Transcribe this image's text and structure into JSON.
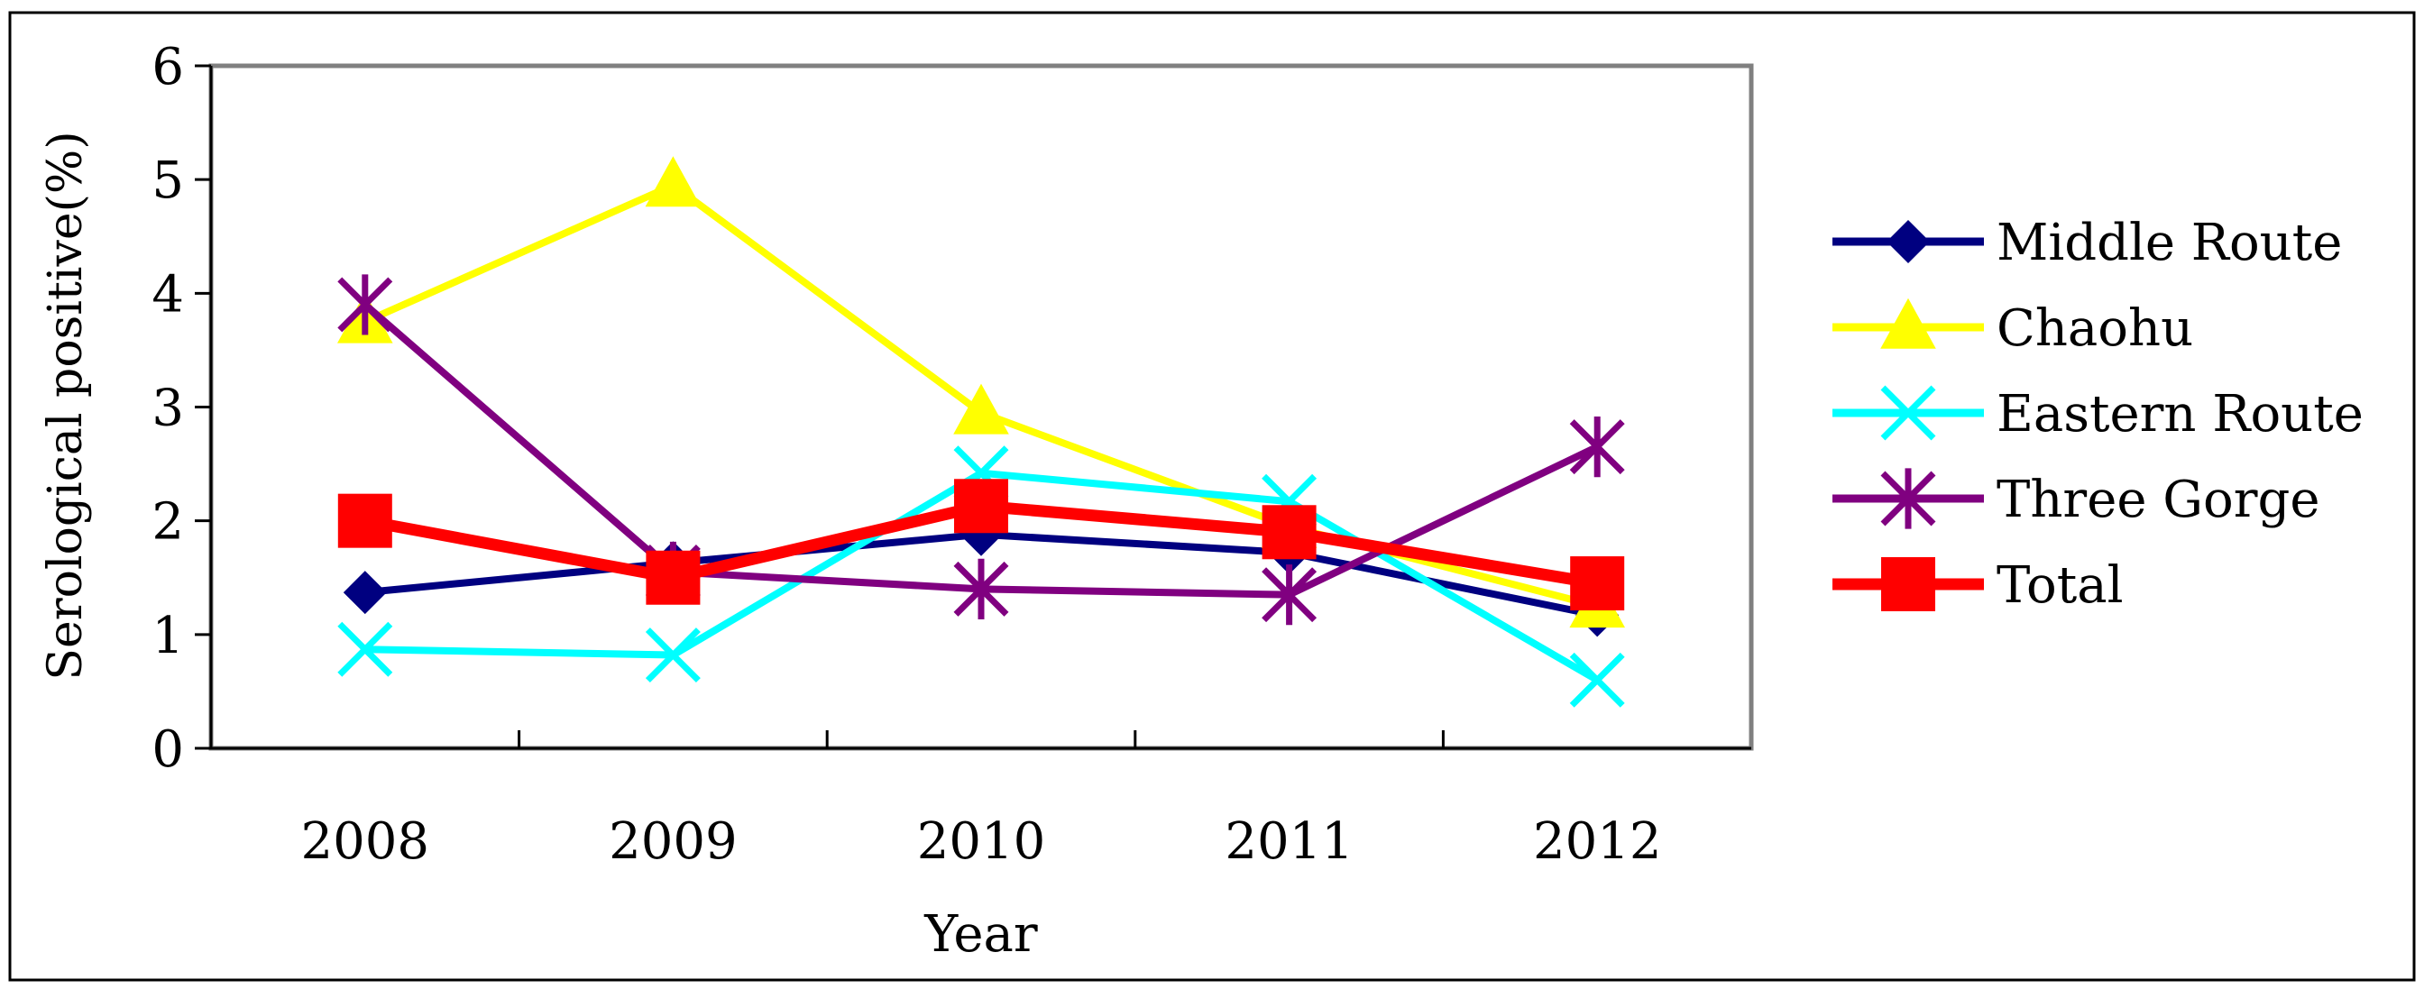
{
  "chart_data": {
    "type": "line",
    "title": "",
    "xlabel": "Year",
    "ylabel": "Serological positive(%)",
    "categories": [
      "2008",
      "2009",
      "2010",
      "2011",
      "2012"
    ],
    "ylim": [
      0,
      6
    ],
    "yticks": [
      "0",
      "1",
      "2",
      "3",
      "4",
      "5",
      "6"
    ],
    "grid": false,
    "legend_position": "right",
    "series": [
      {
        "name": "Middle Route",
        "color": "#000080",
        "marker": "diamond",
        "values": [
          1.37,
          1.63,
          1.88,
          1.72,
          1.17
        ]
      },
      {
        "name": "Chaohu",
        "color": "#ffff00",
        "marker": "triangle",
        "values": [
          3.75,
          4.95,
          2.95,
          1.95,
          1.25
        ]
      },
      {
        "name": "Eastern Route",
        "color": "#00ffff",
        "marker": "x",
        "values": [
          0.87,
          0.82,
          2.42,
          2.17,
          0.6
        ]
      },
      {
        "name": "Three Gorge",
        "color": "#800080",
        "marker": "star",
        "values": [
          3.9,
          1.55,
          1.4,
          1.35,
          2.65
        ]
      },
      {
        "name": "Total",
        "color": "#ff0000",
        "marker": "square",
        "values": [
          2.0,
          1.5,
          2.13,
          1.9,
          1.45
        ]
      }
    ]
  }
}
